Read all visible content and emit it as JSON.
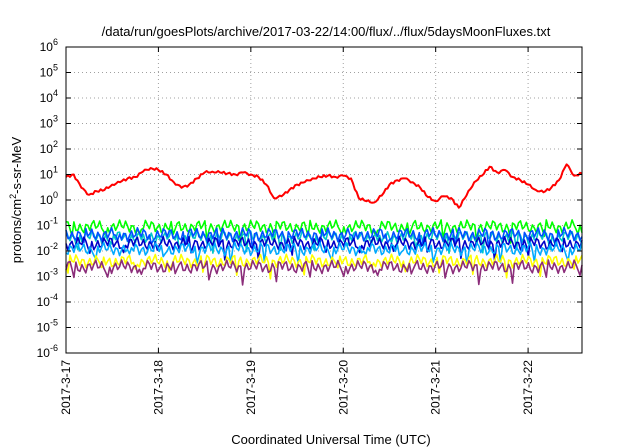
{
  "chart_data": {
    "type": "line",
    "title": "/data/run/goesPlots/archive/2017-03-22/14:00/flux/../flux/5daysMoonFluxes.txt",
    "xlabel": "Coordinated Universal Time (UTC)",
    "ylabel": {
      "prefix": "protons/cm",
      "superscript": "2",
      "suffix": "-s-sr-MeV"
    },
    "y_scale": "log",
    "ylim": [
      1e-06,
      1000000.0
    ],
    "y_ticks": [
      {
        "value": 1e-06,
        "base": "10",
        "exp": "-6"
      },
      {
        "value": 1e-05,
        "base": "10",
        "exp": "-5"
      },
      {
        "value": 0.0001,
        "base": "10",
        "exp": "-4"
      },
      {
        "value": 0.001,
        "base": "10",
        "exp": "-3"
      },
      {
        "value": 0.01,
        "base": "10",
        "exp": "-2"
      },
      {
        "value": 0.1,
        "base": "10",
        "exp": "-1"
      },
      {
        "value": 1,
        "base": "10",
        "exp": "0"
      },
      {
        "value": 10,
        "base": "10",
        "exp": "1"
      },
      {
        "value": 100,
        "base": "10",
        "exp": "2"
      },
      {
        "value": 1000,
        "base": "10",
        "exp": "3"
      },
      {
        "value": 10000,
        "base": "10",
        "exp": "4"
      },
      {
        "value": 100000,
        "base": "10",
        "exp": "5"
      },
      {
        "value": 1000000,
        "base": "10",
        "exp": "6"
      }
    ],
    "x_ticks": [
      {
        "value": "2017-03-17",
        "label": "2017-3-17"
      },
      {
        "value": "2017-03-18",
        "label": "2017-3-18"
      },
      {
        "value": "2017-03-19",
        "label": "2017-3-19"
      },
      {
        "value": "2017-03-20",
        "label": "2017-3-20"
      },
      {
        "value": "2017-03-21",
        "label": "2017-3-21"
      },
      {
        "value": "2017-03-22",
        "label": "2017-3-22"
      }
    ],
    "xlim": [
      "2017-03-17T00:00",
      "2017-03-22T14:00"
    ],
    "grid": true,
    "series": [
      {
        "color": "#ff0000",
        "points": [
          [
            "2017-03-17T00:00",
            8
          ],
          [
            "2017-03-17T02:00",
            10
          ],
          [
            "2017-03-17T04:00",
            3
          ],
          [
            "2017-03-17T06:00",
            1.6
          ],
          [
            "2017-03-17T08:00",
            2.2
          ],
          [
            "2017-03-17T10:00",
            2.5
          ],
          [
            "2017-03-17T12:00",
            4
          ],
          [
            "2017-03-17T14:00",
            5
          ],
          [
            "2017-03-17T16:00",
            7
          ],
          [
            "2017-03-17T18:00",
            8
          ],
          [
            "2017-03-17T20:00",
            13
          ],
          [
            "2017-03-17T22:00",
            18
          ],
          [
            "2017-03-18T00:00",
            15
          ],
          [
            "2017-03-18T02:00",
            10
          ],
          [
            "2017-03-18T04:00",
            5
          ],
          [
            "2017-03-18T06:00",
            3
          ],
          [
            "2017-03-18T08:00",
            4
          ],
          [
            "2017-03-18T10:00",
            7
          ],
          [
            "2017-03-18T12:00",
            12
          ],
          [
            "2017-03-18T14:00",
            13
          ],
          [
            "2017-03-18T16:00",
            12
          ],
          [
            "2017-03-18T18:00",
            11
          ],
          [
            "2017-03-18T20:00",
            10
          ],
          [
            "2017-03-18T22:00",
            12
          ],
          [
            "2017-03-19T00:00",
            10
          ],
          [
            "2017-03-19T02:00",
            8
          ],
          [
            "2017-03-19T04:00",
            4
          ],
          [
            "2017-03-19T06:00",
            1.2
          ],
          [
            "2017-03-19T08:00",
            1.4
          ],
          [
            "2017-03-19T10:00",
            2.5
          ],
          [
            "2017-03-19T12:00",
            4
          ],
          [
            "2017-03-19T14:00",
            5
          ],
          [
            "2017-03-19T16:00",
            7
          ],
          [
            "2017-03-19T18:00",
            8
          ],
          [
            "2017-03-19T20:00",
            9
          ],
          [
            "2017-03-19T22:00",
            8
          ],
          [
            "2017-03-20T00:00",
            9
          ],
          [
            "2017-03-20T02:00",
            7
          ],
          [
            "2017-03-20T04:00",
            1.2
          ],
          [
            "2017-03-20T06:00",
            0.9
          ],
          [
            "2017-03-20T08:00",
            0.8
          ],
          [
            "2017-03-20T10:00",
            1.5
          ],
          [
            "2017-03-20T12:00",
            4
          ],
          [
            "2017-03-20T14:00",
            6
          ],
          [
            "2017-03-20T16:00",
            7
          ],
          [
            "2017-03-20T18:00",
            5
          ],
          [
            "2017-03-20T20:00",
            3
          ],
          [
            "2017-03-20T22:00",
            1.3
          ],
          [
            "2017-03-21T00:00",
            0.9
          ],
          [
            "2017-03-21T02:00",
            1.4
          ],
          [
            "2017-03-21T04:00",
            1.2
          ],
          [
            "2017-03-21T06:00",
            0.5
          ],
          [
            "2017-03-21T08:00",
            1.5
          ],
          [
            "2017-03-21T10:00",
            5
          ],
          [
            "2017-03-21T12:00",
            9
          ],
          [
            "2017-03-21T14:00",
            20
          ],
          [
            "2017-03-21T16:00",
            12
          ],
          [
            "2017-03-21T18:00",
            15
          ],
          [
            "2017-03-21T20:00",
            8
          ],
          [
            "2017-03-21T22:00",
            6
          ],
          [
            "2017-03-22T00:00",
            4
          ],
          [
            "2017-03-22T02:00",
            2.5
          ],
          [
            "2017-03-22T04:00",
            2
          ],
          [
            "2017-03-22T06:00",
            3
          ],
          [
            "2017-03-22T08:00",
            6
          ],
          [
            "2017-03-22T10:00",
            25
          ],
          [
            "2017-03-22T12:00",
            9
          ],
          [
            "2017-03-22T14:00",
            11
          ]
        ]
      },
      {
        "color": "#00ff00",
        "level": 0.09
      },
      {
        "color": "#00c8c8",
        "level": 0.035
      },
      {
        "color": "#0050ff",
        "level": 0.045
      },
      {
        "color": "#0000c8",
        "level": 0.02
      },
      {
        "color": "#00aaff",
        "level": 0.012
      },
      {
        "color": "#ffff00",
        "level": 0.004
      },
      {
        "color": "#8b2d7a",
        "level": 0.0024
      }
    ]
  }
}
